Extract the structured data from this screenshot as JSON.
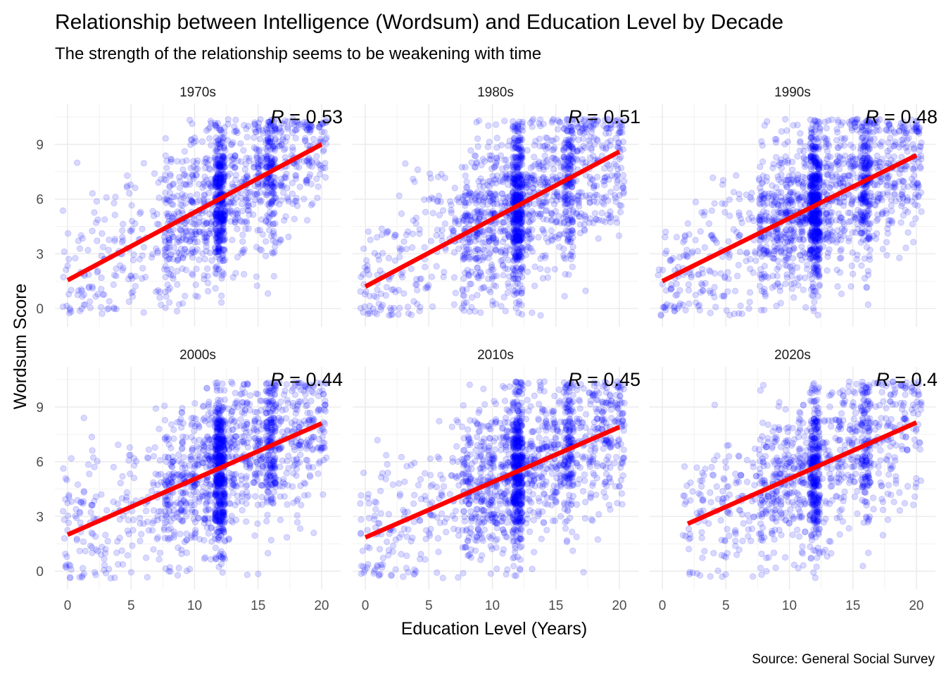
{
  "chart_data": {
    "type": "scatter",
    "title": "Relationship between Intelligence (Wordsum) and Education Level by Decade",
    "subtitle": "The strength of the relationship seems to be weakening with time",
    "xlabel": "Education Level (Years)",
    "ylabel": "Wordsum Score",
    "caption": "Source: General Social Survey",
    "xlim": [
      -1,
      21.5
    ],
    "ylim": [
      -1,
      11.2
    ],
    "x_ticks": [
      0,
      5,
      10,
      15,
      20
    ],
    "y_ticks": [
      0,
      3,
      6,
      9
    ],
    "grid": true,
    "point_color": "#0000ff",
    "line_color": "#ff0000",
    "panels": [
      {
        "label": "1970s",
        "r_label": "R = 0.53",
        "r_value": 0.53,
        "fit": {
          "x": [
            0,
            20
          ],
          "y": [
            1.55,
            9.0
          ]
        },
        "n_points": 1500
      },
      {
        "label": "1980s",
        "r_label": "R = 0.51",
        "r_value": 0.51,
        "fit": {
          "x": [
            0,
            20
          ],
          "y": [
            1.2,
            8.6
          ]
        },
        "n_points": 1800
      },
      {
        "label": "1990s",
        "r_label": "R = 0.48",
        "r_value": 0.48,
        "fit": {
          "x": [
            0,
            20
          ],
          "y": [
            1.5,
            8.4
          ]
        },
        "n_points": 2000
      },
      {
        "label": "2000s",
        "r_label": "R = 0.44",
        "r_value": 0.44,
        "fit": {
          "x": [
            0,
            20
          ],
          "y": [
            2.0,
            8.1
          ]
        },
        "n_points": 1800
      },
      {
        "label": "2010s",
        "r_label": "R = 0.45",
        "r_value": 0.45,
        "fit": {
          "x": [
            0,
            20
          ],
          "y": [
            1.85,
            7.9
          ]
        },
        "n_points": 1800
      },
      {
        "label": "2020s",
        "r_label": "R = 0.4",
        "r_value": 0.4,
        "fit": {
          "x": [
            2,
            20
          ],
          "y": [
            2.6,
            8.15
          ]
        },
        "n_points": 1300
      }
    ]
  }
}
